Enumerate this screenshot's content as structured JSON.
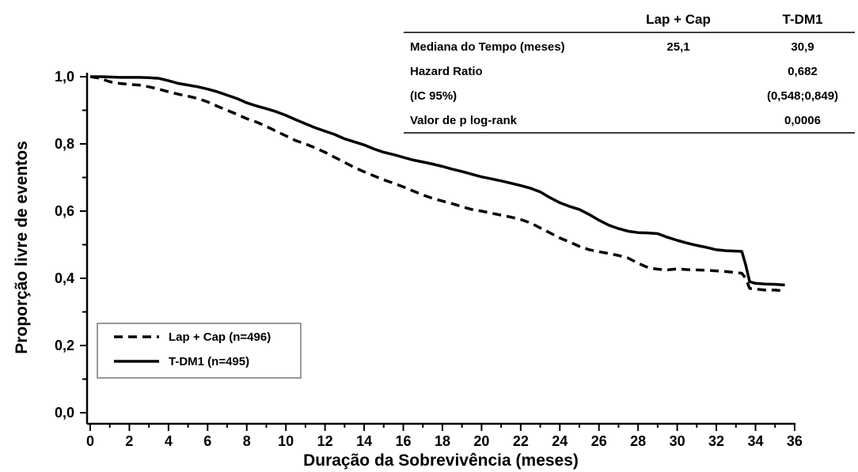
{
  "chart_data": {
    "type": "line",
    "xlabel": "Duração da Sobrevivência (meses)",
    "ylabel": "Proporção  livre de eventos",
    "xlim": [
      0,
      36
    ],
    "ylim": [
      0,
      1
    ],
    "xticks": [
      "0",
      "2",
      "4",
      "6",
      "8",
      "10",
      "12",
      "14",
      "16",
      "18",
      "20",
      "22",
      "24",
      "26",
      "28",
      "30",
      "32",
      "34",
      "36"
    ],
    "yticks": [
      "0,0",
      "0,2",
      "0,4",
      "0,6",
      "0,8",
      "1,0"
    ],
    "grid": false,
    "legend_position": "bottom-left",
    "series": [
      {
        "name": "Lap + Cap (n=496)",
        "style": "dashed",
        "color": "#000000",
        "x": [
          0,
          0.5,
          1,
          1.5,
          2,
          2.5,
          3,
          3.5,
          4,
          4.5,
          5,
          5.5,
          6,
          6.5,
          7,
          7.5,
          8,
          8.5,
          9,
          9.5,
          10,
          10.5,
          11,
          11.5,
          12,
          12.5,
          13,
          13.5,
          14,
          14.5,
          15,
          15.5,
          16,
          16.5,
          17,
          17.5,
          18,
          18.5,
          19,
          19.5,
          20,
          20.5,
          21,
          21.5,
          22,
          22.5,
          23,
          23.5,
          24,
          24.5,
          25,
          25.5,
          26,
          26.5,
          27,
          27.5,
          28,
          28.5,
          29,
          29.5,
          30,
          30.5,
          31,
          31.5,
          32,
          32.5,
          33,
          33.3,
          33.5,
          33.7,
          34,
          34.5,
          35,
          35.5
        ],
        "y": [
          1.0,
          0.995,
          0.985,
          0.98,
          0.977,
          0.975,
          0.97,
          0.963,
          0.955,
          0.948,
          0.942,
          0.935,
          0.925,
          0.912,
          0.9,
          0.888,
          0.875,
          0.865,
          0.852,
          0.838,
          0.824,
          0.81,
          0.8,
          0.788,
          0.775,
          0.76,
          0.745,
          0.73,
          0.717,
          0.705,
          0.693,
          0.683,
          0.672,
          0.66,
          0.648,
          0.638,
          0.63,
          0.622,
          0.613,
          0.605,
          0.6,
          0.594,
          0.588,
          0.582,
          0.575,
          0.565,
          0.55,
          0.535,
          0.52,
          0.508,
          0.495,
          0.485,
          0.479,
          0.474,
          0.468,
          0.46,
          0.445,
          0.432,
          0.427,
          0.425,
          0.428,
          0.426,
          0.425,
          0.424,
          0.422,
          0.42,
          0.417,
          0.415,
          0.4,
          0.37,
          0.368,
          0.365,
          0.365,
          0.362
        ]
      },
      {
        "name": "T-DM1 (n=495)",
        "style": "solid",
        "color": "#000000",
        "x": [
          0,
          0.5,
          1,
          1.5,
          2,
          2.5,
          3,
          3.5,
          4,
          4.5,
          5,
          5.5,
          6,
          6.5,
          7,
          7.5,
          8,
          8.5,
          9,
          9.5,
          10,
          10.5,
          11,
          11.5,
          12,
          12.5,
          13,
          13.5,
          14,
          14.5,
          15,
          15.5,
          16,
          16.5,
          17,
          17.5,
          18,
          18.5,
          19,
          19.5,
          20,
          20.5,
          21,
          21.5,
          22,
          22.5,
          23,
          23.5,
          24,
          24.5,
          25,
          25.5,
          26,
          26.5,
          27,
          27.5,
          28,
          28.5,
          29,
          29.5,
          30,
          30.5,
          31,
          31.5,
          32,
          32.5,
          33,
          33.3,
          33.5,
          33.7,
          34,
          34.5,
          35,
          35.5
        ],
        "y": [
          1.0,
          1.0,
          0.999,
          0.998,
          0.998,
          0.998,
          0.997,
          0.995,
          0.988,
          0.98,
          0.975,
          0.97,
          0.963,
          0.955,
          0.945,
          0.935,
          0.922,
          0.913,
          0.905,
          0.896,
          0.885,
          0.872,
          0.86,
          0.848,
          0.838,
          0.828,
          0.815,
          0.806,
          0.797,
          0.785,
          0.775,
          0.768,
          0.76,
          0.752,
          0.746,
          0.74,
          0.733,
          0.725,
          0.718,
          0.71,
          0.702,
          0.696,
          0.69,
          0.683,
          0.676,
          0.668,
          0.657,
          0.64,
          0.625,
          0.614,
          0.605,
          0.59,
          0.573,
          0.558,
          0.548,
          0.54,
          0.536,
          0.535,
          0.533,
          0.522,
          0.513,
          0.505,
          0.498,
          0.492,
          0.485,
          0.482,
          0.481,
          0.48,
          0.44,
          0.39,
          0.385,
          0.383,
          0.382,
          0.38
        ]
      }
    ],
    "table": {
      "columns": [
        "",
        "Lap + Cap",
        "T-DM1"
      ],
      "rows": [
        [
          "Mediana do Tempo (meses)",
          "25,1",
          "30,9"
        ],
        [
          "Hazard Ratio",
          "",
          "0,682"
        ],
        [
          "(IC 95%)",
          "",
          "(0,548;0,849)"
        ],
        [
          "Valor de p log-rank",
          "",
          "0,0006"
        ]
      ]
    }
  }
}
